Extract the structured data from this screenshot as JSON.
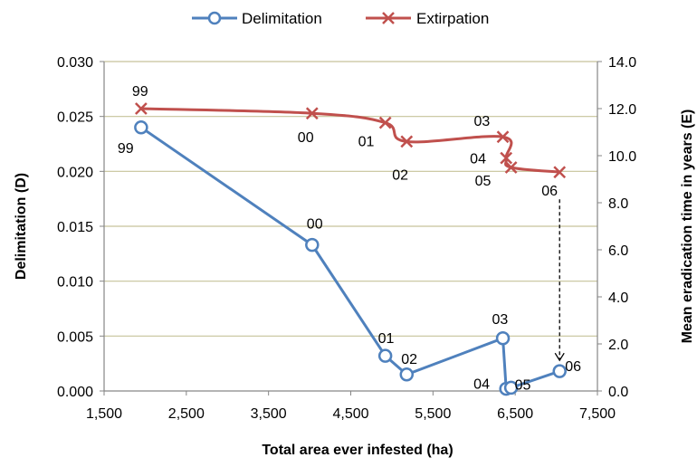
{
  "chart_data": {
    "type": "line",
    "xlabel": "Total area ever infested (ha)",
    "ylabel": "Delimitation (D)",
    "y2label": "Mean eradication time in years (E)",
    "xlim": [
      1500,
      7500
    ],
    "xticks": [
      "1,500",
      "2,500",
      "3,500",
      "4,500",
      "5,500",
      "6,500",
      "7,500"
    ],
    "ylim": [
      0,
      0.03
    ],
    "yticks": [
      "0.000",
      "0.005",
      "0.010",
      "0.015",
      "0.020",
      "0.025",
      "0.030"
    ],
    "y2lim": [
      0,
      14
    ],
    "y2ticks": [
      "0.0",
      "2.0",
      "4.0",
      "6.0",
      "8.0",
      "10.0",
      "12.0",
      "14.0"
    ],
    "grid": "horizontal",
    "legend": "top",
    "series": [
      {
        "name": "Delimitation",
        "axis": "left",
        "color": "#4F81BD",
        "marker": "circle",
        "points": [
          {
            "x": 1950,
            "y": 0.024,
            "label": "99"
          },
          {
            "x": 4030,
            "y": 0.0133,
            "label": "00"
          },
          {
            "x": 4920,
            "y": 0.0032,
            "label": "01"
          },
          {
            "x": 5180,
            "y": 0.0015,
            "label": "02"
          },
          {
            "x": 6350,
            "y": 0.0048,
            "label": "03"
          },
          {
            "x": 6390,
            "y": 0.0002,
            "label": "04"
          },
          {
            "x": 6450,
            "y": 0.0003,
            "label": "05"
          },
          {
            "x": 7040,
            "y": 0.0018,
            "label": "06"
          }
        ]
      },
      {
        "name": "Extirpation",
        "axis": "right",
        "color": "#C0504D",
        "marker": "x",
        "points": [
          {
            "x": 1950,
            "y": 12.0,
            "label": "99"
          },
          {
            "x": 4030,
            "y": 11.8,
            "label": "00"
          },
          {
            "x": 4920,
            "y": 11.4,
            "label": "01"
          },
          {
            "x": 5180,
            "y": 10.6,
            "label": "02"
          },
          {
            "x": 6350,
            "y": 10.8,
            "label": "03"
          },
          {
            "x": 6390,
            "y": 9.9,
            "label": "04"
          },
          {
            "x": 6450,
            "y": 9.5,
            "label": "05"
          },
          {
            "x": 7040,
            "y": 9.3,
            "label": "06"
          }
        ]
      }
    ]
  }
}
